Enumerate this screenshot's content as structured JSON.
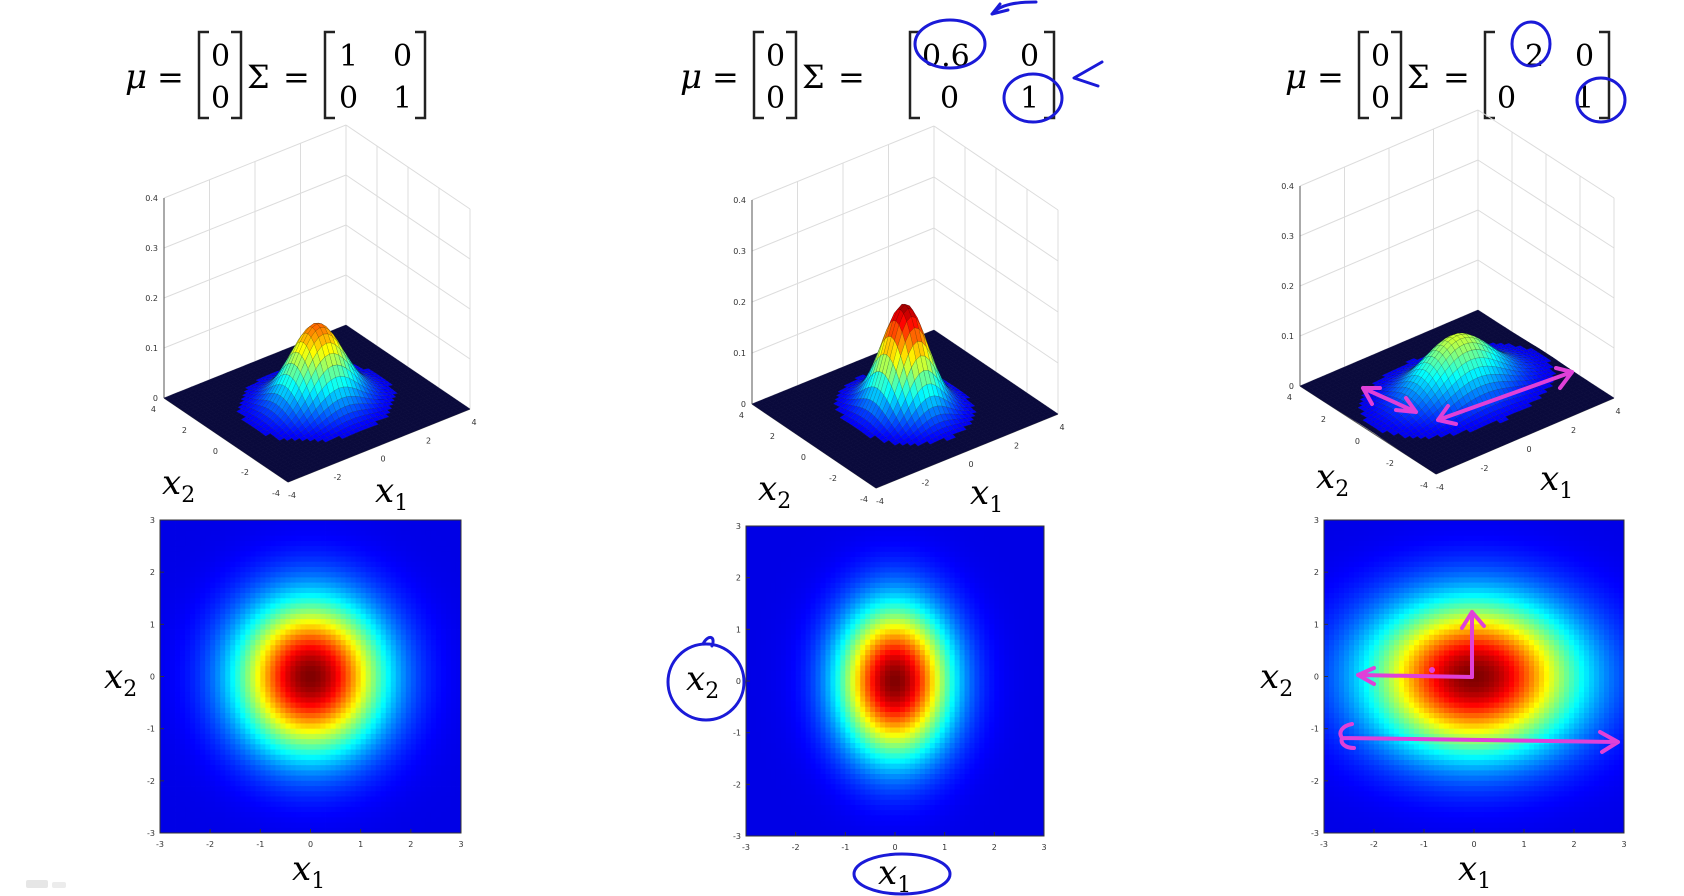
{
  "chart_data": [
    {
      "type": "surface",
      "mu": [
        "0",
        "0"
      ],
      "sigma": [
        [
          "1",
          "0"
        ],
        [
          "0",
          "1"
        ]
      ],
      "var_x1": 1,
      "var_x2": 1,
      "xlabel": "x1",
      "ylabel": "x2",
      "zlim": [
        0,
        0.4
      ],
      "z_ticks": [
        "0.4",
        "0.3",
        "0.2",
        "0.1",
        "0"
      ],
      "x_ticks": [
        "-4",
        "-2",
        "0",
        "2",
        "4"
      ],
      "y_ticks": [
        "4",
        "2",
        "0",
        "-2",
        "-4"
      ]
    },
    {
      "type": "surface",
      "mu": [
        "0",
        "0"
      ],
      "sigma": [
        [
          "0.6",
          "0"
        ],
        [
          "0",
          "1"
        ]
      ],
      "var_x1": 0.6,
      "var_x2": 1,
      "xlabel": "x1",
      "ylabel": "x2",
      "zlim": [
        0,
        0.4
      ],
      "z_ticks": [
        "0.4",
        "0.3",
        "0.2",
        "0.1",
        "0"
      ],
      "x_ticks": [
        "-4",
        "-2",
        "0",
        "2",
        "4"
      ],
      "y_ticks": [
        "4",
        "2",
        "0",
        "-2",
        "-4"
      ]
    },
    {
      "type": "surface",
      "mu": [
        "0",
        "0"
      ],
      "sigma": [
        [
          "2",
          "0"
        ],
        [
          "0",
          "1"
        ]
      ],
      "var_x1": 2,
      "var_x2": 1,
      "xlabel": "x1",
      "ylabel": "x2",
      "zlim": [
        0,
        0.4
      ],
      "z_ticks": [
        "0.4",
        "0.3",
        "0.2",
        "0.1",
        "0"
      ],
      "x_ticks": [
        "-4",
        "-2",
        "0",
        "2",
        "4"
      ],
      "y_ticks": [
        "4",
        "2",
        "0",
        "-2",
        "-4"
      ]
    },
    {
      "type": "heatmap",
      "var_x1": 1,
      "var_x2": 1,
      "xlim": [
        -3,
        3
      ],
      "ylim": [
        -3,
        3
      ],
      "x_ticks": [
        "-3",
        "-2",
        "-1",
        "0",
        "1",
        "2",
        "3"
      ],
      "y_ticks": [
        "3",
        "2",
        "1",
        "0",
        "-1",
        "-2",
        "-3"
      ],
      "xlabel": "x1",
      "ylabel": "x2"
    },
    {
      "type": "heatmap",
      "var_x1": 0.6,
      "var_x2": 1,
      "xlim": [
        -3,
        3
      ],
      "ylim": [
        -3,
        3
      ],
      "x_ticks": [
        "-3",
        "-2",
        "-1",
        "0",
        "1",
        "2",
        "3"
      ],
      "y_ticks": [
        "3",
        "2",
        "1",
        "0",
        "-1",
        "-2",
        "-3"
      ],
      "xlabel": "x1",
      "ylabel": "x2"
    },
    {
      "type": "heatmap",
      "var_x1": 2,
      "var_x2": 1,
      "xlim": [
        -3,
        3
      ],
      "ylim": [
        -3,
        3
      ],
      "x_ticks": [
        "-3",
        "-2",
        "-1",
        "0",
        "1",
        "2",
        "3"
      ],
      "y_ticks": [
        "3",
        "2",
        "1",
        "0",
        "-1",
        "-2",
        "-3"
      ],
      "xlabel": "x1",
      "ylabel": "x2"
    }
  ],
  "labels": {
    "mu": "μ",
    "equals": "=",
    "sigma": "Σ",
    "x": "x",
    "sub1": "1",
    "sub2": "2"
  },
  "colors": {
    "annotation_blue": "#1a1ad8",
    "annotation_pink": "#e040d8"
  }
}
